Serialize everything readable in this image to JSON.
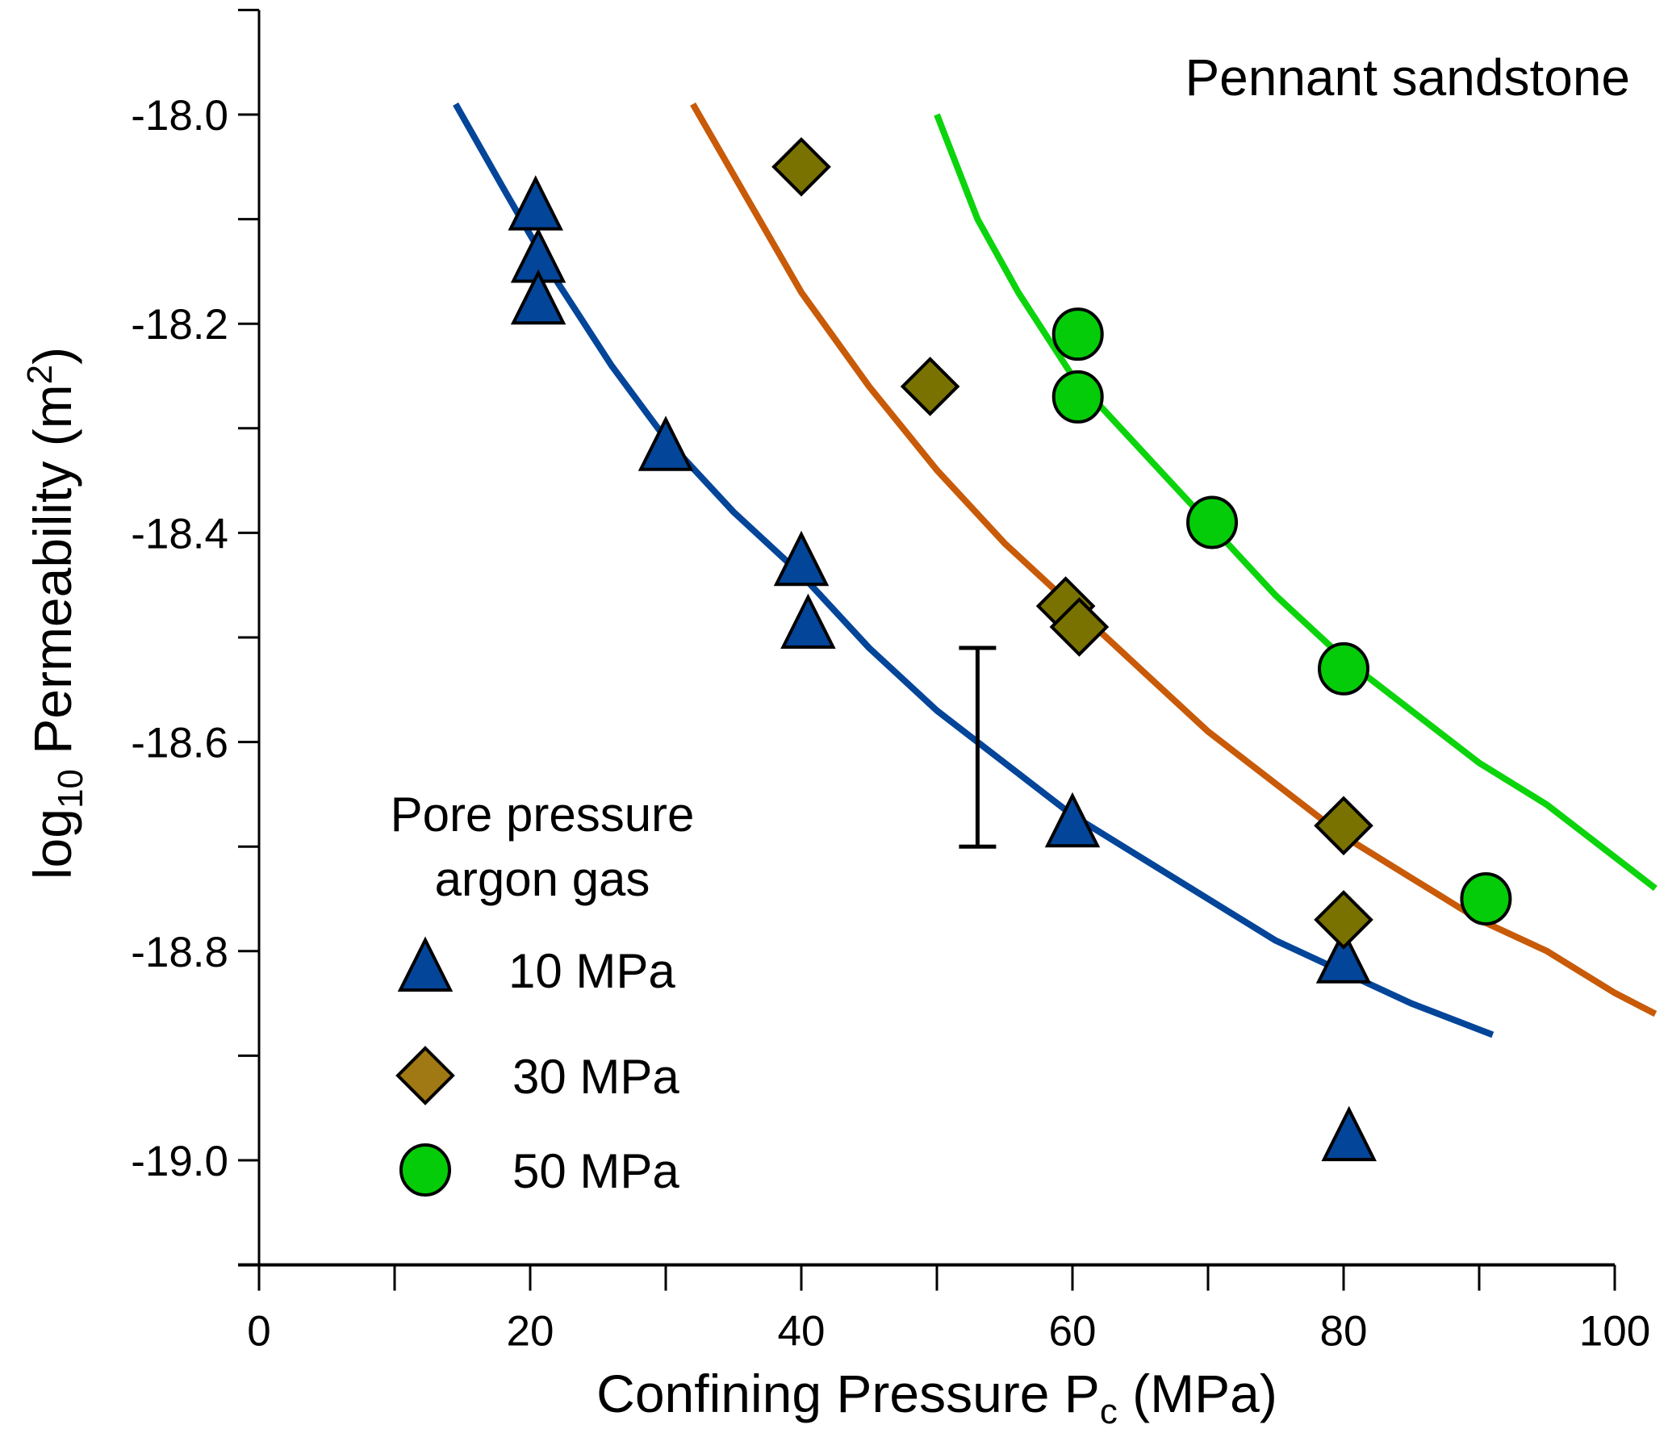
{
  "chart_data": {
    "type": "scatter",
    "title": "",
    "annotation": "Pennant sandstone",
    "xlabel": {
      "main": "Confining Pressure  P",
      "sub": "c",
      "tail": "  (MPa)"
    },
    "ylabel": {
      "pre": "log",
      "sub": "10",
      "mid": " Permeability  (m",
      "sup": "2",
      "tail": ")"
    },
    "xlim": [
      0,
      100
    ],
    "ylim": [
      -19.1,
      -17.9
    ],
    "x_ticks": [
      0,
      20,
      40,
      60,
      80,
      100
    ],
    "x_tick_labels": [
      "0",
      "20",
      "40",
      "60",
      "80",
      "100"
    ],
    "x_minor_ticks": [
      10,
      30,
      50,
      70,
      90
    ],
    "y_ticks": [
      -18.0,
      -18.2,
      -18.4,
      -18.6,
      -18.8,
      -19.0
    ],
    "y_tick_labels": [
      "-18.0",
      "-18.2",
      "-18.4",
      "-18.6",
      "-18.8",
      "-19.0"
    ],
    "y_minor_ticks": [
      -17.9,
      -18.1,
      -18.3,
      -18.5,
      -18.7,
      -18.9,
      -19.1
    ],
    "grid": false,
    "legend": {
      "placement": "bottom-left",
      "title_lines": [
        "Pore pressure",
        "argon gas"
      ],
      "entries": [
        "10 MPa",
        "30 MPa",
        "50 MPa"
      ]
    },
    "error_bar": {
      "x": 53,
      "y_low": -18.7,
      "y_high": -18.51
    },
    "series": [
      {
        "name": "10 MPa",
        "marker": "triangle",
        "fill": "#034599",
        "line_color": "#034599",
        "points": [
          [
            20.4,
            -18.09
          ],
          [
            20.6,
            -18.14
          ],
          [
            20.6,
            -18.18
          ],
          [
            30,
            -18.32
          ],
          [
            40,
            -18.43
          ],
          [
            40.5,
            -18.49
          ],
          [
            60,
            -18.68
          ],
          [
            80,
            -18.81
          ],
          [
            80.4,
            -18.98
          ]
        ],
        "fit": [
          [
            14.5,
            -17.99
          ],
          [
            18,
            -18.07
          ],
          [
            22,
            -18.16
          ],
          [
            26,
            -18.24
          ],
          [
            30,
            -18.31
          ],
          [
            35,
            -18.38
          ],
          [
            40,
            -18.44
          ],
          [
            45,
            -18.51
          ],
          [
            50,
            -18.57
          ],
          [
            55,
            -18.62
          ],
          [
            60,
            -18.67
          ],
          [
            65,
            -18.71
          ],
          [
            70,
            -18.75
          ],
          [
            75,
            -18.79
          ],
          [
            80,
            -18.82
          ],
          [
            85,
            -18.85
          ],
          [
            91,
            -18.88
          ]
        ]
      },
      {
        "name": "30 MPa",
        "marker": "diamond",
        "fill": "#7a7200",
        "legend_fill": "#a07814",
        "line_color": "#c85a08",
        "points": [
          [
            40,
            -18.05
          ],
          [
            49.5,
            -18.26
          ],
          [
            59.5,
            -18.47
          ],
          [
            60.5,
            -18.49
          ],
          [
            80,
            -18.68
          ],
          [
            80,
            -18.77
          ]
        ],
        "fit": [
          [
            32,
            -17.99
          ],
          [
            36,
            -18.08
          ],
          [
            40,
            -18.17
          ],
          [
            45,
            -18.26
          ],
          [
            50,
            -18.34
          ],
          [
            55,
            -18.41
          ],
          [
            60,
            -18.47
          ],
          [
            65,
            -18.53
          ],
          [
            70,
            -18.59
          ],
          [
            75,
            -18.64
          ],
          [
            80,
            -18.69
          ],
          [
            85,
            -18.73
          ],
          [
            90,
            -18.77
          ],
          [
            95,
            -18.8
          ],
          [
            100,
            -18.84
          ],
          [
            103,
            -18.86
          ]
        ]
      },
      {
        "name": "50 MPa",
        "marker": "circle",
        "fill": "#04cc08",
        "line_color": "#0cd40c",
        "points": [
          [
            60.4,
            -18.21
          ],
          [
            60.4,
            -18.27
          ],
          [
            70.3,
            -18.39
          ],
          [
            80,
            -18.53
          ],
          [
            90.5,
            -18.75
          ]
        ],
        "fit": [
          [
            50,
            -18.0
          ],
          [
            53,
            -18.1
          ],
          [
            56,
            -18.17
          ],
          [
            60,
            -18.25
          ],
          [
            65,
            -18.32
          ],
          [
            70,
            -18.39
          ],
          [
            75,
            -18.46
          ],
          [
            80,
            -18.52
          ],
          [
            85,
            -18.57
          ],
          [
            90,
            -18.62
          ],
          [
            95,
            -18.66
          ],
          [
            100,
            -18.71
          ],
          [
            103,
            -18.74
          ]
        ]
      }
    ]
  }
}
